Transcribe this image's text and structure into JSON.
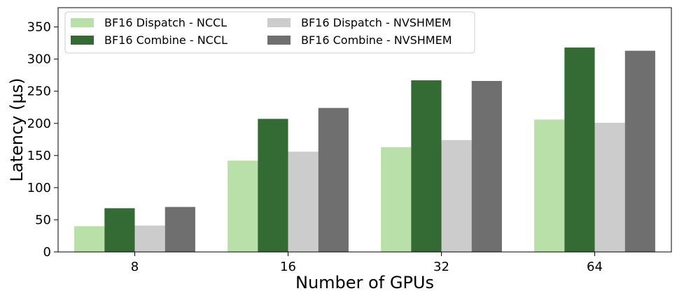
{
  "chart_data": {
    "type": "bar",
    "title": "",
    "xlabel": "Number of GPUs",
    "ylabel": "Latency (µs)",
    "categories": [
      "8",
      "16",
      "32",
      "64"
    ],
    "ylim": [
      0,
      380
    ],
    "yticks": [
      0,
      50,
      100,
      150,
      200,
      250,
      300,
      350
    ],
    "grid": false,
    "legend_position": "top-left",
    "legend_columns": 2,
    "series": [
      {
        "name": "BF16 Dispatch - NCCL",
        "color": "#b8e0a8",
        "values": [
          40,
          142,
          163,
          206
        ]
      },
      {
        "name": "BF16 Combine - NCCL",
        "color": "#346a34",
        "values": [
          68,
          207,
          267,
          318
        ]
      },
      {
        "name": "BF16 Dispatch - NVSHMEM",
        "color": "#cccccc",
        "values": [
          41,
          156,
          174,
          201
        ]
      },
      {
        "name": "BF16 Combine - NVSHMEM",
        "color": "#6f6f6f",
        "values": [
          70,
          224,
          266,
          313
        ]
      }
    ]
  }
}
